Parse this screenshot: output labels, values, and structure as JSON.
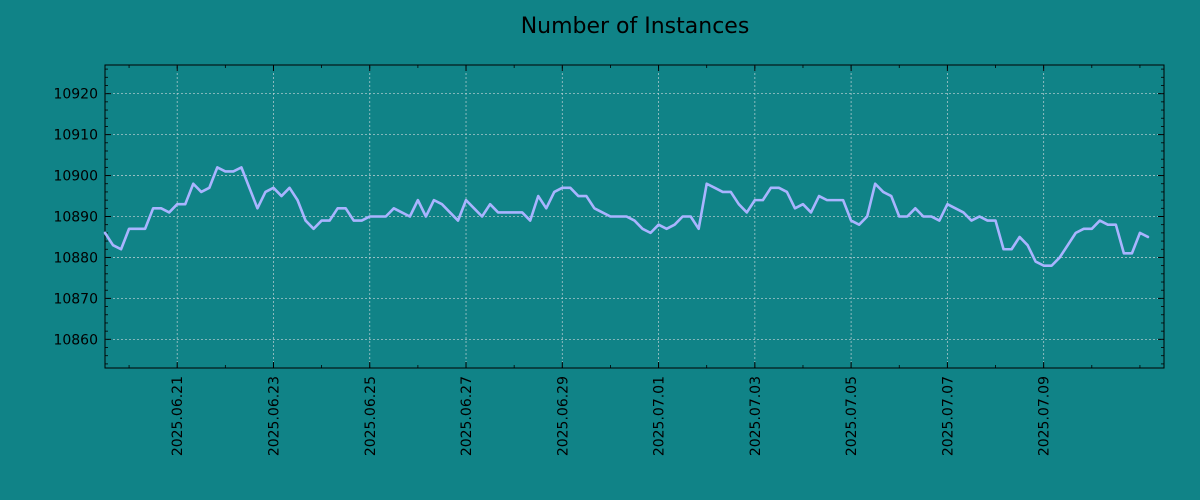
{
  "chart_data": {
    "type": "line",
    "title": "Number of Instances",
    "xlabel": "",
    "ylabel": "",
    "grid": true,
    "colors": {
      "background": "#108387",
      "line": "#a9b4ff",
      "grid": "#cfd8dc",
      "axes": "#000000"
    },
    "xlim": [
      "2025-06-19T12:00",
      "2025-07-11T12:00"
    ],
    "ylim": [
      10853,
      10927
    ],
    "x_ticks": [
      "2025.06.21",
      "2025.06.23",
      "2025.06.25",
      "2025.06.27",
      "2025.06.29",
      "2025.07.01",
      "2025.07.03",
      "2025.07.05",
      "2025.07.07",
      "2025.07.09"
    ],
    "y_ticks": [
      10860,
      10870,
      10880,
      10890,
      10900,
      10910,
      10920
    ],
    "series": [
      {
        "x_start": "2025-06-19T12:00",
        "x_step_hours": 4,
        "values": [
          10886,
          10883,
          10882,
          10887,
          10887,
          10887,
          10892,
          10892,
          10891,
          10893,
          10893,
          10898,
          10896,
          10897,
          10902,
          10901,
          10901,
          10902,
          10897,
          10892,
          10896,
          10897,
          10895,
          10897,
          10894,
          10889,
          10887,
          10889,
          10889,
          10892,
          10892,
          10889,
          10889,
          10890,
          10890,
          10890,
          10892,
          10891,
          10890,
          10894,
          10890,
          10894,
          10893,
          10891,
          10889,
          10894,
          10892,
          10890,
          10893,
          10891,
          10891,
          10891,
          10891,
          10889,
          10895,
          10892,
          10896,
          10897,
          10897,
          10895,
          10895,
          10892,
          10891,
          10890,
          10890,
          10890,
          10889,
          10887,
          10886,
          10888,
          10887,
          10888,
          10890,
          10890,
          10887,
          10898,
          10897,
          10896,
          10896,
          10893,
          10891,
          10894,
          10894,
          10897,
          10897,
          10896,
          10892,
          10893,
          10891,
          10895,
          10894,
          10894,
          10894,
          10889,
          10888,
          10890,
          10898,
          10896,
          10895,
          10890,
          10890,
          10892,
          10890,
          10890,
          10889,
          10893,
          10892,
          10891,
          10889,
          10890,
          10889,
          10889,
          10882,
          10882,
          10885,
          10883,
          10879,
          10878,
          10878,
          10880,
          10883,
          10886,
          10887,
          10887,
          10889,
          10888,
          10888,
          10881,
          10881,
          10886,
          10885
        ]
      }
    ]
  }
}
